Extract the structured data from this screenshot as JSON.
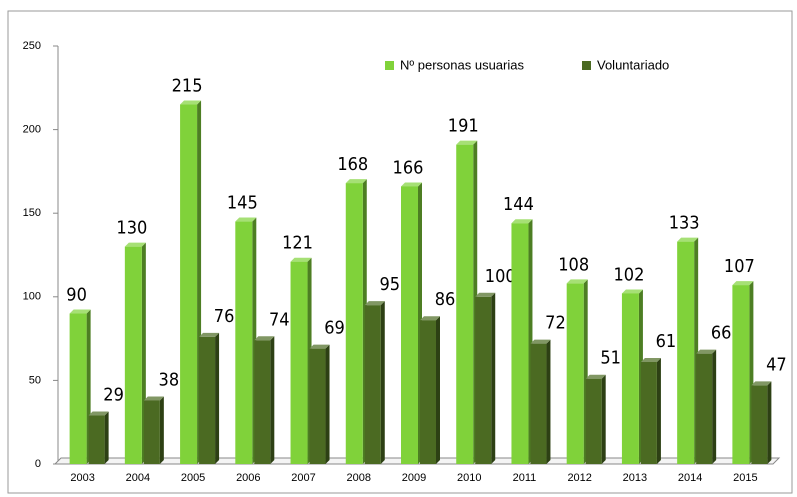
{
  "chart_data": {
    "type": "bar3d",
    "categories": [
      "2003",
      "2004",
      "2005",
      "2006",
      "2007",
      "2008",
      "2009",
      "2010",
      "2011",
      "2012",
      "2013",
      "2014",
      "2015"
    ],
    "series": [
      {
        "name": "Nº personas usuarias",
        "color": "#80d23a",
        "values": [
          90,
          130,
          215,
          145,
          121,
          168,
          166,
          191,
          144,
          108,
          102,
          133,
          107
        ]
      },
      {
        "name": "Voluntariado",
        "color": "#4b6a22",
        "values": [
          29,
          38,
          76,
          74,
          69,
          95,
          86,
          100,
          72,
          51,
          61,
          66,
          47
        ]
      }
    ],
    "ylim": [
      0,
      250
    ],
    "yticks": [
      0,
      50,
      100,
      150,
      200,
      250
    ]
  }
}
